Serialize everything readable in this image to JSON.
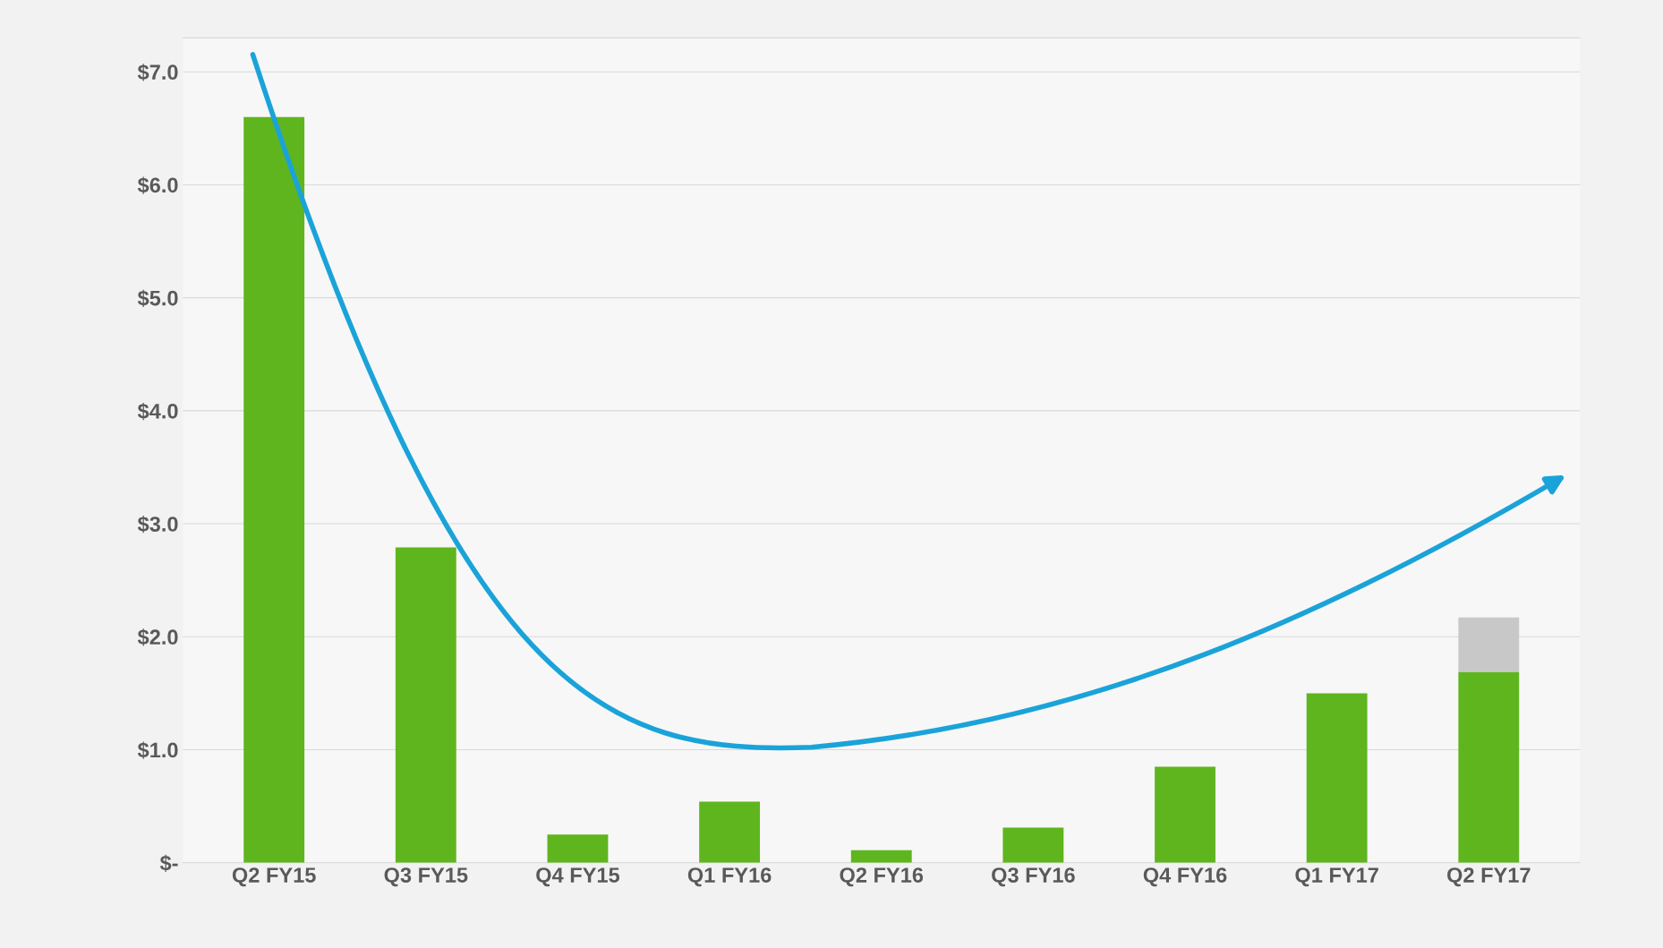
{
  "chart_data": {
    "type": "bar",
    "stacked": true,
    "categories": [
      "Q2 FY15",
      "Q3 FY15",
      "Q4 FY15",
      "Q1 FY16",
      "Q2 FY16",
      "Q3 FY16",
      "Q4 FY16",
      "Q1 FY17",
      "Q2 FY17"
    ],
    "series": [
      {
        "color": "#5fb51e",
        "values": [
          6.6,
          2.79,
          0.25,
          0.54,
          0.11,
          0.31,
          0.85,
          1.5,
          1.69
        ]
      },
      {
        "color": "#c8c8c8",
        "values": [
          null,
          null,
          null,
          null,
          null,
          null,
          null,
          null,
          0.48
        ]
      }
    ],
    "ylim": [
      0,
      7.3
    ],
    "yticks": [
      {
        "value": 0,
        "label": "$-"
      },
      {
        "value": 1,
        "label": "$1.0"
      },
      {
        "value": 2,
        "label": "$2.0"
      },
      {
        "value": 3,
        "label": "$3.0"
      },
      {
        "value": 4,
        "label": "$4.0"
      },
      {
        "value": 5,
        "label": "$5.0"
      },
      {
        "value": 6,
        "label": "$6.0"
      },
      {
        "value": 7,
        "label": "$7.0"
      }
    ],
    "grid": "y"
  }
}
